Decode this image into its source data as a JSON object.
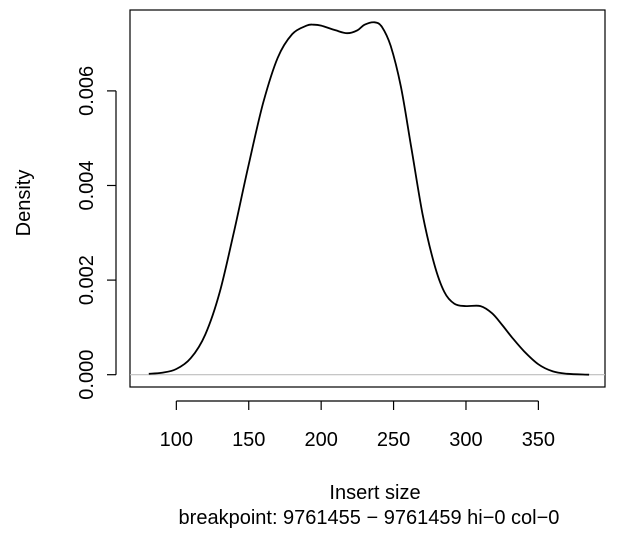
{
  "chart_data": {
    "type": "line",
    "title": "",
    "xlabel": "Insert size",
    "subtitle": "breakpoint: 9761455 − 9761459 hi−0 col−0",
    "ylabel": "Density",
    "xlim": [
      68,
      396
    ],
    "ylim": [
      -0.00026,
      0.00771
    ],
    "x_ticks": [
      100,
      150,
      200,
      250,
      300,
      350
    ],
    "x_tick_labels": [
      "100",
      "150",
      "200",
      "250",
      "300",
      "350"
    ],
    "y_ticks": [
      0.0,
      0.002,
      0.004,
      0.006
    ],
    "y_tick_labels": [
      "0.000",
      "0.002",
      "0.004",
      "0.006"
    ],
    "baseline": 0,
    "baseline_color": "#bebebe",
    "line_color": "#000000",
    "grid": false,
    "series": [
      {
        "x": [
          81,
          90,
          100,
          110,
          120,
          130,
          140,
          150,
          160,
          170,
          180,
          190,
          195,
          200,
          210,
          218,
          225,
          230,
          237,
          242,
          248,
          255,
          262,
          270,
          278,
          285,
          292,
          300,
          310,
          318,
          325,
          332,
          340,
          350,
          360,
          370,
          385
        ],
        "y": [
          2e-05,
          4e-05,
          0.00012,
          0.00035,
          0.00085,
          0.00175,
          0.00305,
          0.00445,
          0.00575,
          0.0067,
          0.0072,
          0.00738,
          0.0074,
          0.00738,
          0.00728,
          0.00722,
          0.00728,
          0.0074,
          0.00745,
          0.00735,
          0.00695,
          0.0061,
          0.00485,
          0.0034,
          0.00235,
          0.00175,
          0.0015,
          0.00145,
          0.00145,
          0.0013,
          0.00105,
          0.00078,
          0.0005,
          0.00022,
          7e-05,
          2e-05,
          0.0
        ]
      }
    ]
  }
}
